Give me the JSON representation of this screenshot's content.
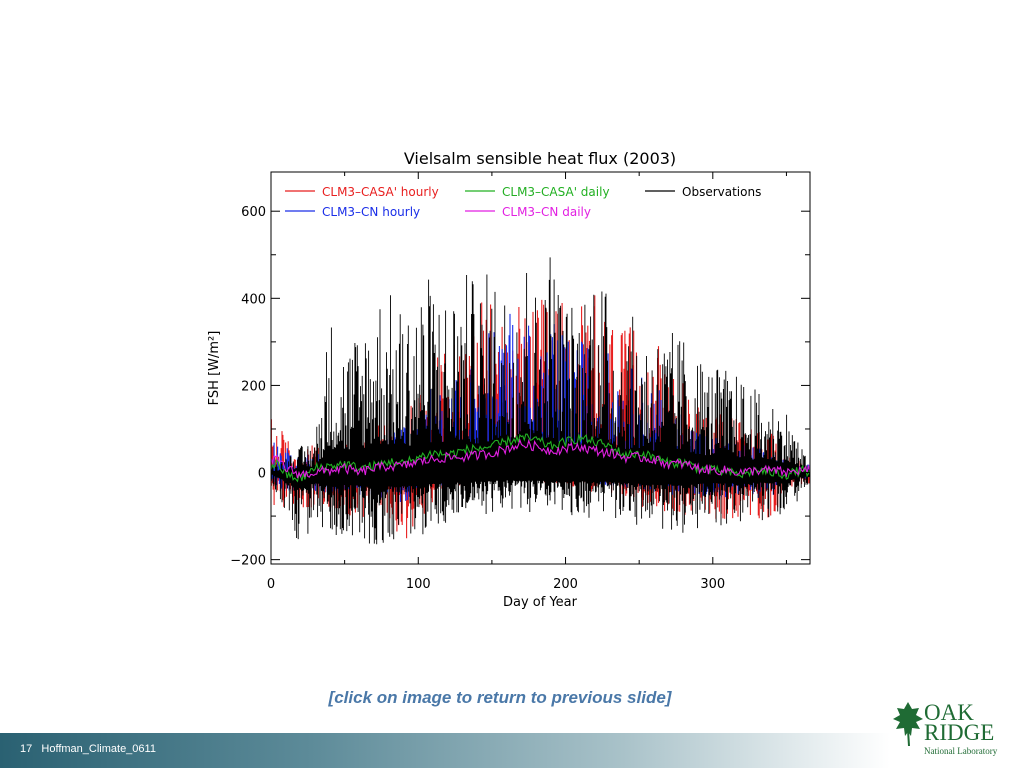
{
  "slide": {
    "caption": "[click on image to return to previous slide]",
    "footer": "17   Hoffman_Climate_0611",
    "logo_line1": "OAK",
    "logo_line2": "RIDGE",
    "logo_line3": "National Laboratory"
  },
  "chart_data": {
    "type": "line",
    "title": "Vielsalm sensible heat flux (2003)",
    "xlabel": "Day of Year",
    "ylabel": "FSH [W/m²]",
    "xlim": [
      0,
      366
    ],
    "ylim": [
      -210,
      690
    ],
    "xticks": [
      0,
      100,
      200,
      300
    ],
    "yticks": [
      -200,
      0,
      200,
      400,
      600
    ],
    "grid": false,
    "legend_position": "top",
    "series": [
      {
        "name": "CLM3–CASA' hourly",
        "color": "#e81f1f",
        "style": "hourly",
        "x": [
          0,
          10,
          20,
          30,
          40,
          50,
          60,
          70,
          80,
          90,
          100,
          110,
          120,
          130,
          140,
          150,
          160,
          170,
          180,
          190,
          200,
          210,
          220,
          230,
          240,
          250,
          260,
          270,
          280,
          290,
          300,
          310,
          320,
          330,
          340,
          350,
          365
        ],
        "max": [
          135,
          90,
          40,
          70,
          55,
          70,
          80,
          110,
          130,
          150,
          210,
          260,
          300,
          330,
          390,
          400,
          420,
          390,
          380,
          430,
          400,
          390,
          410,
          380,
          330,
          340,
          320,
          230,
          210,
          180,
          140,
          140,
          130,
          110,
          90,
          40,
          25
        ],
        "min": [
          -75,
          -85,
          -80,
          -90,
          -80,
          -120,
          -110,
          -100,
          -105,
          -165,
          -115,
          -75,
          -50,
          -30,
          -25,
          -20,
          -15,
          -20,
          -20,
          -25,
          -30,
          -35,
          -50,
          -50,
          -65,
          -80,
          -85,
          -90,
          -100,
          -100,
          -105,
          -115,
          -120,
          -120,
          -110,
          -40,
          -25
        ]
      },
      {
        "name": "CLM3–CN hourly",
        "color": "#1a2ee8",
        "style": "hourly",
        "x": [
          0,
          10,
          20,
          30,
          40,
          50,
          60,
          70,
          80,
          90,
          100,
          110,
          120,
          130,
          140,
          150,
          160,
          170,
          180,
          190,
          200,
          210,
          220,
          230,
          240,
          250,
          260,
          270,
          280,
          290,
          300,
          310,
          320,
          330,
          340,
          350,
          365
        ],
        "max": [
          90,
          60,
          30,
          55,
          45,
          60,
          70,
          90,
          110,
          120,
          170,
          200,
          220,
          250,
          300,
          350,
          380,
          360,
          330,
          350,
          320,
          310,
          300,
          280,
          250,
          240,
          210,
          160,
          140,
          120,
          90,
          80,
          70,
          60,
          50,
          30,
          20
        ],
        "min": [
          -40,
          -45,
          -40,
          -45,
          -50,
          -60,
          -55,
          -55,
          -60,
          -70,
          -50,
          -40,
          -30,
          -20,
          -15,
          -10,
          -10,
          -10,
          -10,
          -15,
          -20,
          -25,
          -30,
          -30,
          -35,
          -40,
          -45,
          -50,
          -55,
          -55,
          -55,
          -60,
          -60,
          -60,
          -55,
          -25,
          -15
        ]
      },
      {
        "name": "Observations",
        "color": "#000000",
        "style": "hourly",
        "x": [
          0,
          10,
          20,
          30,
          40,
          50,
          60,
          70,
          80,
          90,
          100,
          110,
          120,
          130,
          140,
          150,
          160,
          170,
          180,
          190,
          200,
          210,
          220,
          230,
          240,
          250,
          260,
          270,
          280,
          290,
          300,
          310,
          320,
          330,
          340,
          350,
          365
        ],
        "max": [
          20,
          40,
          60,
          90,
          370,
          310,
          340,
          440,
          420,
          380,
          450,
          460,
          420,
          470,
          440,
          480,
          440,
          570,
          430,
          550,
          400,
          410,
          540,
          390,
          360,
          360,
          330,
          330,
          320,
          280,
          250,
          240,
          220,
          190,
          170,
          150,
          20
        ],
        "min": [
          -20,
          -95,
          -180,
          -120,
          -160,
          -140,
          -150,
          -175,
          -160,
          -155,
          -150,
          -130,
          -120,
          -110,
          -100,
          -95,
          -90,
          -95,
          -90,
          -100,
          -105,
          -100,
          -110,
          -100,
          -120,
          -130,
          -140,
          -135,
          -150,
          -130,
          -120,
          -125,
          -120,
          -115,
          -110,
          -100,
          -30
        ]
      },
      {
        "name": "CLM3–CASA' daily",
        "color": "#22b022",
        "style": "daily",
        "x": [
          0,
          5,
          10,
          20,
          30,
          40,
          50,
          60,
          70,
          80,
          90,
          100,
          110,
          120,
          130,
          140,
          150,
          160,
          170,
          180,
          190,
          200,
          210,
          220,
          230,
          240,
          250,
          260,
          270,
          280,
          290,
          300,
          310,
          320,
          330,
          340,
          350,
          360,
          366
        ],
        "y": [
          15,
          20,
          -5,
          -15,
          10,
          15,
          20,
          10,
          15,
          25,
          20,
          35,
          45,
          40,
          50,
          55,
          60,
          70,
          80,
          75,
          60,
          70,
          80,
          70,
          60,
          40,
          45,
          35,
          20,
          25,
          10,
          5,
          0,
          -5,
          5,
          0,
          -5,
          5,
          0
        ]
      },
      {
        "name": "CLM3–CN daily",
        "color": "#e21fe2",
        "style": "daily",
        "x": [
          0,
          5,
          10,
          20,
          30,
          40,
          50,
          60,
          70,
          80,
          90,
          100,
          110,
          120,
          130,
          140,
          150,
          160,
          170,
          180,
          190,
          200,
          210,
          220,
          230,
          240,
          250,
          260,
          270,
          280,
          290,
          300,
          310,
          320,
          330,
          340,
          350,
          360,
          366
        ],
        "y": [
          25,
          30,
          10,
          -5,
          0,
          5,
          10,
          0,
          10,
          15,
          15,
          25,
          30,
          35,
          35,
          40,
          45,
          55,
          65,
          60,
          50,
          55,
          60,
          50,
          45,
          35,
          35,
          30,
          20,
          20,
          10,
          5,
          5,
          0,
          5,
          5,
          0,
          5,
          5
        ]
      }
    ]
  }
}
